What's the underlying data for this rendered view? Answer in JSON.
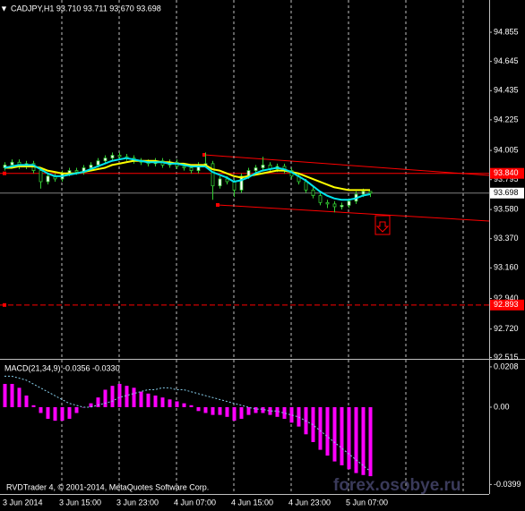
{
  "chart_data": [
    {
      "type": "candlestick",
      "title": "CADJPY,H1  93.710 93.711 93.670 93.698",
      "categories": [
        "3 Jun 2014",
        null,
        null,
        null,
        null,
        null,
        null,
        null,
        "3 Jun 15:00",
        null,
        null,
        null,
        null,
        null,
        null,
        null,
        "3 Jun 23:00",
        null,
        null,
        null,
        null,
        null,
        null,
        null,
        "4 Jun 07:00",
        null,
        null,
        null,
        null,
        null,
        null,
        null,
        "4 Jun 15:00",
        null,
        null,
        null,
        null,
        null,
        null,
        null,
        "4 Jun 23:00",
        null,
        null,
        null,
        null,
        null,
        null,
        null,
        "5 Jun 07:00",
        null,
        null,
        null
      ],
      "open": [
        93.88,
        93.9,
        93.92,
        93.89,
        93.91,
        93.86,
        93.78,
        93.82,
        93.8,
        93.84,
        93.86,
        93.85,
        93.88,
        93.9,
        93.93,
        93.95,
        93.97,
        93.96,
        93.95,
        93.93,
        93.92,
        93.91,
        93.93,
        93.9,
        93.92,
        93.89,
        93.88,
        93.86,
        93.9,
        93.91,
        93.75,
        93.8,
        93.78,
        93.72,
        93.82,
        93.86,
        93.88,
        93.9,
        93.87,
        93.89,
        93.86,
        93.82,
        93.78,
        93.72,
        93.68,
        93.63,
        93.62,
        93.6,
        93.61,
        93.64,
        93.69,
        93.71
      ],
      "high": [
        93.92,
        93.94,
        93.94,
        93.93,
        93.93,
        93.88,
        93.84,
        93.84,
        93.86,
        93.88,
        93.88,
        93.9,
        93.92,
        93.95,
        93.97,
        93.99,
        93.99,
        93.98,
        93.97,
        93.95,
        93.94,
        93.95,
        93.95,
        93.94,
        93.94,
        93.91,
        93.9,
        93.92,
        93.99,
        93.93,
        93.82,
        93.82,
        93.8,
        93.84,
        93.88,
        93.9,
        93.96,
        93.92,
        93.91,
        93.91,
        93.88,
        93.84,
        93.8,
        93.74,
        93.7,
        93.65,
        93.64,
        93.63,
        93.66,
        93.71,
        93.73,
        93.711
      ],
      "low": [
        93.86,
        93.88,
        93.87,
        93.87,
        93.84,
        93.73,
        93.76,
        93.78,
        93.78,
        93.82,
        93.83,
        93.83,
        93.86,
        93.88,
        93.91,
        93.93,
        93.94,
        93.93,
        93.91,
        93.9,
        93.89,
        93.89,
        93.88,
        93.88,
        93.87,
        93.86,
        93.84,
        93.84,
        93.88,
        93.65,
        93.73,
        93.76,
        93.67,
        93.7,
        93.8,
        93.84,
        93.86,
        93.85,
        93.85,
        93.84,
        93.8,
        93.76,
        93.7,
        93.66,
        93.61,
        93.59,
        93.56,
        93.58,
        93.59,
        93.62,
        93.67,
        93.67
      ],
      "close": [
        93.9,
        93.92,
        93.89,
        93.91,
        93.86,
        93.78,
        93.82,
        93.8,
        93.84,
        93.86,
        93.85,
        93.88,
        93.9,
        93.93,
        93.95,
        93.97,
        93.96,
        93.95,
        93.93,
        93.92,
        93.91,
        93.93,
        93.9,
        93.92,
        93.89,
        93.88,
        93.86,
        93.9,
        93.91,
        93.75,
        93.8,
        93.78,
        93.72,
        93.82,
        93.86,
        93.88,
        93.9,
        93.87,
        93.89,
        93.86,
        93.82,
        93.78,
        93.72,
        93.68,
        93.63,
        93.62,
        93.6,
        93.61,
        93.64,
        93.69,
        93.71,
        93.698
      ],
      "up_color": "#ffffff",
      "down_color": "#000000",
      "wick_color": "#32cd32",
      "series": [
        {
          "color": "#ffff00",
          "values": [
            93.88,
            93.88,
            93.89,
            93.89,
            93.89,
            93.88,
            93.86,
            93.85,
            93.84,
            93.84,
            93.84,
            93.85,
            93.86,
            93.87,
            93.88,
            93.9,
            93.91,
            93.92,
            93.93,
            93.93,
            93.93,
            93.93,
            93.92,
            93.92,
            93.91,
            93.91,
            93.9,
            93.9,
            93.9,
            93.87,
            93.86,
            93.84,
            93.82,
            93.81,
            93.82,
            93.83,
            93.84,
            93.85,
            93.86,
            93.86,
            93.85,
            93.84,
            93.82,
            93.8,
            93.78,
            93.76,
            93.74,
            93.73,
            93.72,
            93.72,
            93.72,
            93.72
          ]
        },
        {
          "color": "#00e5ee",
          "values": [
            93.88,
            93.89,
            93.9,
            93.9,
            93.9,
            93.87,
            93.84,
            93.82,
            93.82,
            93.83,
            93.84,
            93.85,
            93.87,
            93.89,
            93.91,
            93.93,
            93.94,
            93.95,
            93.94,
            93.93,
            93.92,
            93.92,
            93.92,
            93.91,
            93.91,
            93.9,
            93.89,
            93.89,
            93.89,
            93.85,
            93.83,
            93.81,
            93.78,
            93.79,
            93.81,
            93.84,
            93.86,
            93.87,
            93.88,
            93.87,
            93.85,
            93.82,
            93.79,
            93.75,
            93.71,
            93.68,
            93.66,
            93.65,
            93.65,
            93.66,
            93.68,
            93.69
          ]
        }
      ],
      "ylim": [
        92.512,
        95.087
      ],
      "yticks": [
        94.855,
        94.645,
        94.435,
        94.225,
        94.005,
        93.795,
        {
          "value": 93.58,
          "label": "93.580"
        },
        {
          "value": 93.37,
          "label": "93.370"
        },
        {
          "value": 93.16,
          "label": "93.160"
        },
        {
          "value": 92.94,
          "label": "92.940"
        },
        {
          "value": 92.72,
          "label": "92.720"
        },
        92.515
      ],
      "levels": [
        {
          "value": 93.84,
          "label": "93.840",
          "color": "#ff0000",
          "style": "solid"
        },
        {
          "value": 92.893,
          "color": "#ff0000",
          "style": "dashed"
        }
      ],
      "last_price": 93.698
    },
    {
      "type": "macd",
      "title": "MACD(21,34,9) -0.0356 -0.0330",
      "series": [
        {
          "style": "histogram",
          "color": "#ff00ff",
          "values": [
            0.012,
            0.012,
            0.01,
            0.006,
            0.001,
            -0.003,
            -0.006,
            -0.007,
            -0.007,
            -0.006,
            -0.003,
            0.0,
            0.002,
            0.005,
            0.009,
            0.011,
            0.012,
            0.011,
            0.01,
            0.008,
            0.007,
            0.006,
            0.005,
            0.004,
            0.003,
            0.002,
            0.001,
            -0.002,
            -0.003,
            -0.004,
            -0.004,
            -0.005,
            -0.007,
            -0.006,
            -0.004,
            -0.003,
            -0.003,
            -0.004,
            -0.005,
            -0.006,
            -0.008,
            -0.01,
            -0.014,
            -0.018,
            -0.022,
            -0.025,
            -0.028,
            -0.03,
            -0.032,
            -0.034,
            -0.035,
            -0.0356
          ]
        },
        {
          "style": "dotted",
          "color": "#87ceeb",
          "values": [
            0.016,
            0.016,
            0.015,
            0.014,
            0.012,
            0.01,
            0.008,
            0.006,
            0.004,
            0.002,
            0.001,
            0.0,
            0.0,
            0.001,
            0.002,
            0.003,
            0.005,
            0.006,
            0.007,
            0.008,
            0.009,
            0.009,
            0.01,
            0.01,
            0.009,
            0.009,
            0.008,
            0.007,
            0.006,
            0.005,
            0.004,
            0.003,
            0.002,
            0.001,
            0.0,
            -0.001,
            -0.001,
            -0.002,
            -0.002,
            -0.003,
            -0.004,
            -0.005,
            -0.007,
            -0.009,
            -0.012,
            -0.015,
            -0.018,
            -0.021,
            -0.024,
            -0.027,
            -0.03,
            -0.033
          ]
        }
      ],
      "ylim": [
        -0.0448,
        0.024
      ],
      "yticks": [
        0.0208,
        {
          "value": 0,
          "label": "0.00"
        },
        -0.0399
      ]
    }
  ],
  "footer": "RVDTrader 4, © 2001-2014, MetaQuotes Software Corp.",
  "watermark": "forex.osobye.ru"
}
